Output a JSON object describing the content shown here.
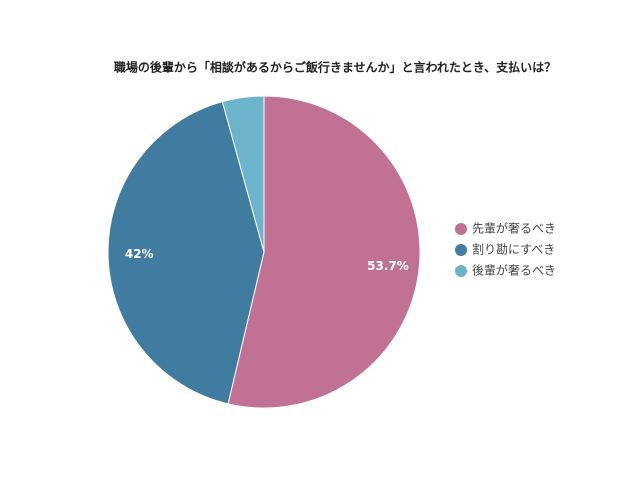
{
  "chart_data": {
    "type": "pie",
    "title": "職場の後輩から「相談があるからご飯行きませんか」と言われたとき、支払いは？",
    "categories": [
      "先輩が奢るべき",
      "割り勘にすべき",
      "後輩が奢るべき"
    ],
    "values": [
      53.7,
      42,
      4.3
    ],
    "value_labels": [
      "53.7%",
      "42%",
      null
    ],
    "colors": [
      "#c07194",
      "#407ba0",
      "#6bb4cc"
    ],
    "legend": "right"
  }
}
